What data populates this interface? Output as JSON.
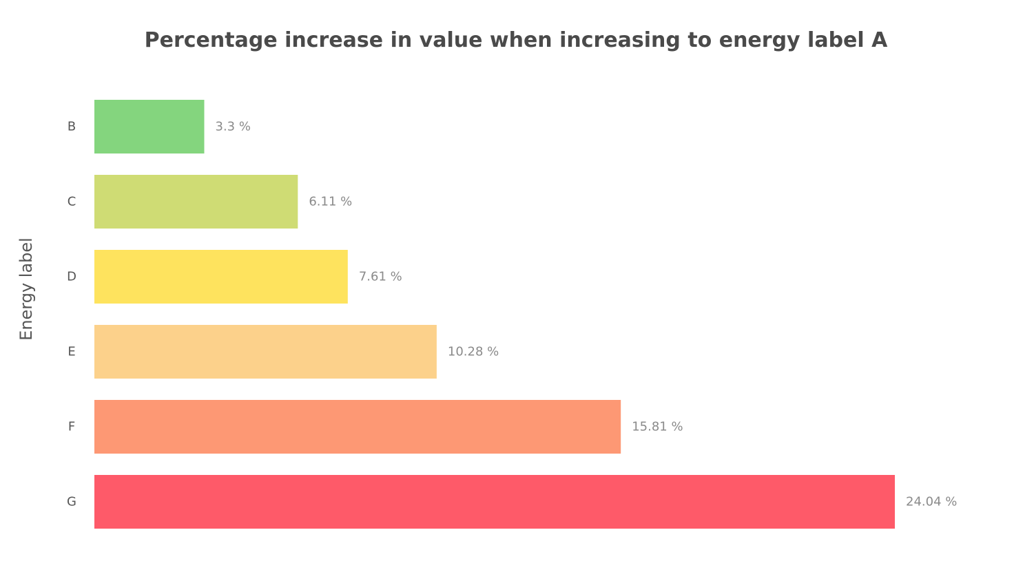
{
  "chart_data": {
    "type": "bar",
    "orientation": "horizontal",
    "title": "Percentage increase in value when increasing to energy label A",
    "xlabel": "",
    "ylabel": "Energy label",
    "categories": [
      "B",
      "C",
      "D",
      "E",
      "F",
      "G"
    ],
    "values": [
      3.3,
      6.11,
      7.61,
      10.28,
      15.81,
      24.04
    ],
    "data_labels": [
      "3.3 %",
      "6.11 %",
      "7.61 %",
      "10.28 %",
      "15.81 %",
      "24.04 %"
    ],
    "colors": [
      "#84d57e",
      "#cfdc74",
      "#fee35e",
      "#fcd18b",
      "#fd9874",
      "#fe5a69"
    ],
    "xlim": [
      0,
      24.04
    ],
    "grid": false,
    "legend": "none"
  }
}
